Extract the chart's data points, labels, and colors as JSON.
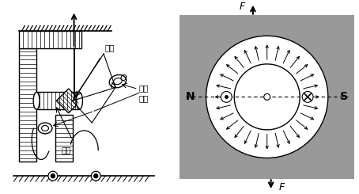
{
  "fig_width": 4.54,
  "fig_height": 2.45,
  "dpi": 100,
  "bg_color": "#ffffff",
  "gray_color": "#999999",
  "label_ruantie": "软铁",
  "label_xianquan": "线圈",
  "label_luoxuan": "蜗旋\n弹簧",
  "label_Q": "Q",
  "label_N": "N",
  "label_S": "S",
  "label_F": "F"
}
